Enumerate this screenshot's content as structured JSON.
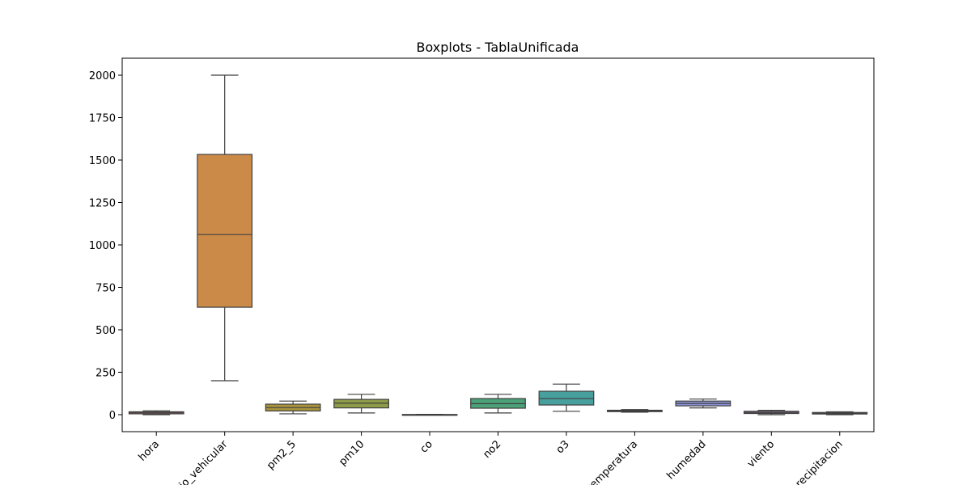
{
  "chart_data": {
    "type": "box",
    "title": "Boxplots - TablaUnificada",
    "xlabel": "",
    "ylabel": "",
    "ylim": [
      -100,
      2100
    ],
    "yticks": [
      0,
      250,
      500,
      750,
      1000,
      1250,
      1500,
      1750,
      2000
    ],
    "grid": false,
    "legend": "none",
    "categories": [
      "hora",
      "flujo_vehicular",
      "pm2_5",
      "pm10",
      "co",
      "no2",
      "o3",
      "temperatura",
      "humedad",
      "viento",
      "precipitacion"
    ],
    "boxes": [
      {
        "name": "hora",
        "whisker_low": 0,
        "q1": 5,
        "median": 11,
        "q3": 17,
        "whisker_high": 23,
        "color": "#d47a7f"
      },
      {
        "name": "flujo_vehicular",
        "whisker_low": 200,
        "q1": 633,
        "median": 1061,
        "q3": 1533,
        "whisker_high": 2000,
        "color": "#cc8a48"
      },
      {
        "name": "pm2_5",
        "whisker_low": 5,
        "q1": 22,
        "median": 42,
        "q3": 62,
        "whisker_high": 80,
        "color": "#a8943e"
      },
      {
        "name": "pm10",
        "whisker_low": 10,
        "q1": 40,
        "median": 68,
        "q3": 90,
        "whisker_high": 120,
        "color": "#8e9b48"
      },
      {
        "name": "co",
        "whisker_low": -2,
        "q1": -1,
        "median": 0,
        "q3": 1,
        "whisker_high": 2,
        "color": "#56a052"
      },
      {
        "name": "no2",
        "whisker_low": 10,
        "q1": 38,
        "median": 65,
        "q3": 95,
        "whisker_high": 120,
        "color": "#4ba178"
      },
      {
        "name": "o3",
        "whisker_low": 20,
        "q1": 57,
        "median": 95,
        "q3": 138,
        "whisker_high": 180,
        "color": "#48a09e"
      },
      {
        "name": "temperatura",
        "whisker_low": 15,
        "q1": 18,
        "median": 22,
        "q3": 26,
        "whisker_high": 30,
        "color": "#4e9cbf"
      },
      {
        "name": "humedad",
        "whisker_low": 40,
        "q1": 52,
        "median": 66,
        "q3": 80,
        "whisker_high": 92,
        "color": "#8c93d8"
      },
      {
        "name": "viento",
        "whisker_low": 0,
        "q1": 7,
        "median": 13,
        "q3": 20,
        "whisker_high": 26,
        "color": "#c284c8"
      },
      {
        "name": "precipitacion",
        "whisker_low": 0,
        "q1": 4,
        "median": 8,
        "q3": 13,
        "whisker_high": 17,
        "color": "#d47aa8"
      }
    ]
  }
}
